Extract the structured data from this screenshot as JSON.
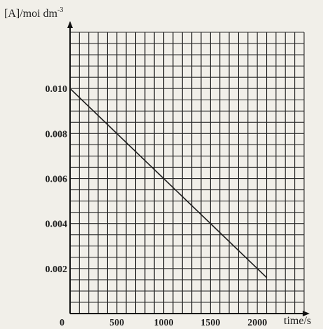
{
  "chart_data": {
    "type": "line",
    "ylabel": "[A]/moi dm",
    "ylabel_sup": "-3",
    "xlabel": "time/s",
    "xlim": [
      0,
      2500
    ],
    "ylim": [
      0,
      0.0125
    ],
    "x_ticks": [
      0,
      500,
      1000,
      1500,
      2000
    ],
    "x_tick_labels": [
      "0",
      "500",
      "1000",
      "1500",
      "2000"
    ],
    "y_ticks": [
      0.002,
      0.004,
      0.006,
      0.008,
      0.01
    ],
    "y_tick_labels": [
      "0.002",
      "0.004",
      "0.006",
      "0.008",
      "0.010"
    ],
    "minor_grid_x": 100,
    "minor_grid_y": 0.0005,
    "grid": true,
    "series": [
      {
        "x": [
          0,
          2100
        ],
        "y": [
          0.01,
          0.0016
        ]
      }
    ],
    "colors": {
      "line": "#1d1d1d",
      "grid": "#2b2b2b",
      "background": "#f1efe9"
    }
  }
}
